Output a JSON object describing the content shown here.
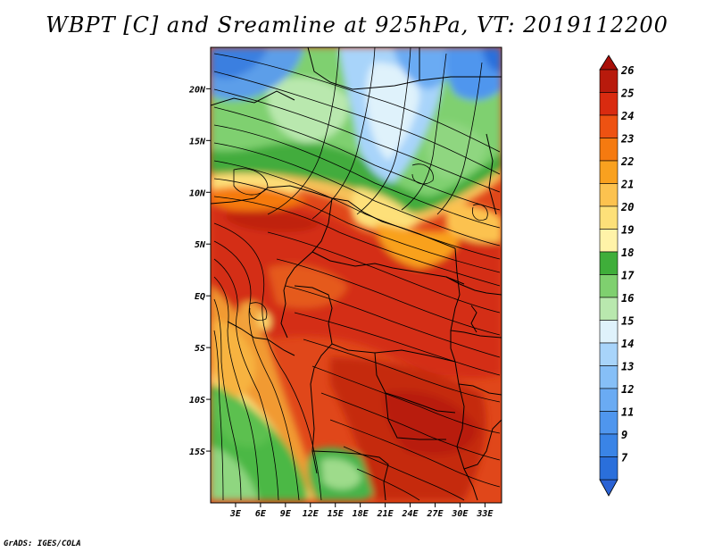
{
  "title": "WBPT [C] and Sreamline at 925hPa, VT: 2019112200",
  "footer": "GrADS: IGES/COLA",
  "map": {
    "lon_range": [
      0,
      35
    ],
    "lat_range": [
      -20,
      24
    ],
    "x_ticks": [
      {
        "value": 3,
        "label": "3E"
      },
      {
        "value": 6,
        "label": "6E"
      },
      {
        "value": 9,
        "label": "9E"
      },
      {
        "value": 12,
        "label": "12E"
      },
      {
        "value": 15,
        "label": "15E"
      },
      {
        "value": 18,
        "label": "18E"
      },
      {
        "value": 21,
        "label": "21E"
      },
      {
        "value": 24,
        "label": "24E"
      },
      {
        "value": 27,
        "label": "27E"
      },
      {
        "value": 30,
        "label": "30E"
      },
      {
        "value": 33,
        "label": "33E"
      }
    ],
    "y_ticks": [
      {
        "value": 20,
        "label": "20N"
      },
      {
        "value": 15,
        "label": "15N"
      },
      {
        "value": 10,
        "label": "10N"
      },
      {
        "value": 5,
        "label": "5N"
      },
      {
        "value": 0,
        "label": "EQ"
      },
      {
        "value": -5,
        "label": "5S"
      },
      {
        "value": -10,
        "label": "10S"
      },
      {
        "value": -15,
        "label": "15S"
      }
    ]
  },
  "colorbar": {
    "levels": [
      {
        "label": "7",
        "color": "#2a6fdb"
      },
      {
        "label": "9",
        "color": "#3a84e6"
      },
      {
        "label": "11",
        "color": "#4f96ee"
      },
      {
        "label": "12",
        "color": "#6aabf3"
      },
      {
        "label": "13",
        "color": "#86bff7"
      },
      {
        "label": "14",
        "color": "#a8d4fa"
      },
      {
        "label": "15",
        "color": "#dff2fb"
      },
      {
        "label": "16",
        "color": "#b9e8ae"
      },
      {
        "label": "17",
        "color": "#7fd06f"
      },
      {
        "label": "18",
        "color": "#3fae3a"
      },
      {
        "label": "19",
        "color": "#fff3a8"
      },
      {
        "label": "20",
        "color": "#fde079"
      },
      {
        "label": "21",
        "color": "#fcc24f"
      },
      {
        "label": "22",
        "color": "#f9a11f"
      },
      {
        "label": "23",
        "color": "#f57a10"
      },
      {
        "label": "24",
        "color": "#ee5212"
      },
      {
        "label": "25",
        "color": "#d92b10"
      },
      {
        "label": "26",
        "color": "#b81a0c"
      }
    ],
    "under_color": "#2a62d4",
    "over_color": "#a80f08"
  }
}
